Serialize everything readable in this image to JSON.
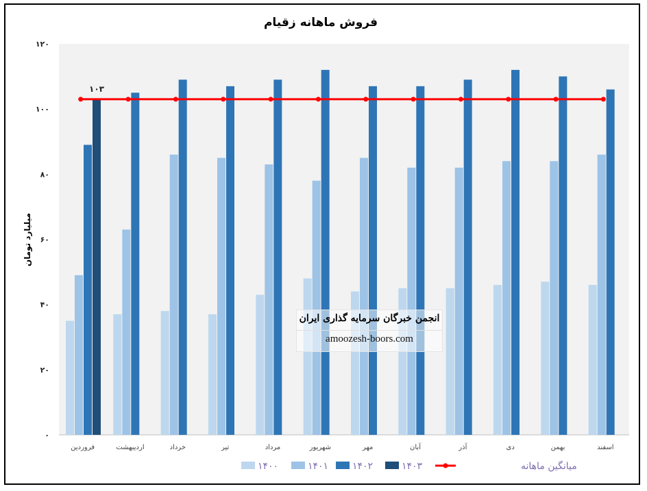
{
  "chart_data": {
    "type": "bar",
    "title": "فروش ماهانه زقیام",
    "ylabel": "میلیارد تومان",
    "xlabel": "",
    "ylim": [
      0,
      120
    ],
    "yticks": [
      0,
      20,
      40,
      60,
      80,
      100,
      120
    ],
    "ytick_labels": [
      "۰",
      "۲۰",
      "۴۰",
      "۶۰",
      "۸۰",
      "۱۰۰",
      "۱۲۰"
    ],
    "categories": [
      "فروردین",
      "اردیبهشت",
      "خرداد",
      "تیر",
      "مرداد",
      "شهریور",
      "مهر",
      "آبان",
      "آذر",
      "دی",
      "بهمن",
      "اسفند"
    ],
    "series": [
      {
        "name": "۱۴۰۰",
        "color": "#bdd7ee",
        "values": [
          35,
          37,
          38,
          37,
          43,
          48,
          44,
          45,
          45,
          46,
          47,
          46
        ]
      },
      {
        "name": "۱۴۰۱",
        "color": "#9dc3e6",
        "values": [
          49,
          63,
          86,
          85,
          83,
          78,
          85,
          82,
          82,
          84,
          84,
          86
        ]
      },
      {
        "name": "۱۴۰۲",
        "color": "#2e75b6",
        "values": [
          89,
          105,
          109,
          107,
          109,
          112,
          107,
          107,
          109,
          112,
          110,
          106
        ]
      },
      {
        "name": "۱۴۰۳",
        "color": "#1f4e79",
        "values": [
          103,
          null,
          null,
          null,
          null,
          null,
          null,
          null,
          null,
          null,
          null,
          null
        ]
      }
    ],
    "average_line": {
      "name": "میانگین ماهانه",
      "value": 103,
      "color": "#ff0000"
    },
    "data_labels": [
      {
        "series": "۱۴۰۳",
        "category": "فروردین",
        "text": "۱۰۳"
      }
    ],
    "legend_position": "bottom",
    "grid": false,
    "background_color": "#f2f2f2"
  },
  "watermark": {
    "title": "انجمن خبرگان سرمایه گذاری ایران",
    "url": "amoozesh-boors.com"
  }
}
